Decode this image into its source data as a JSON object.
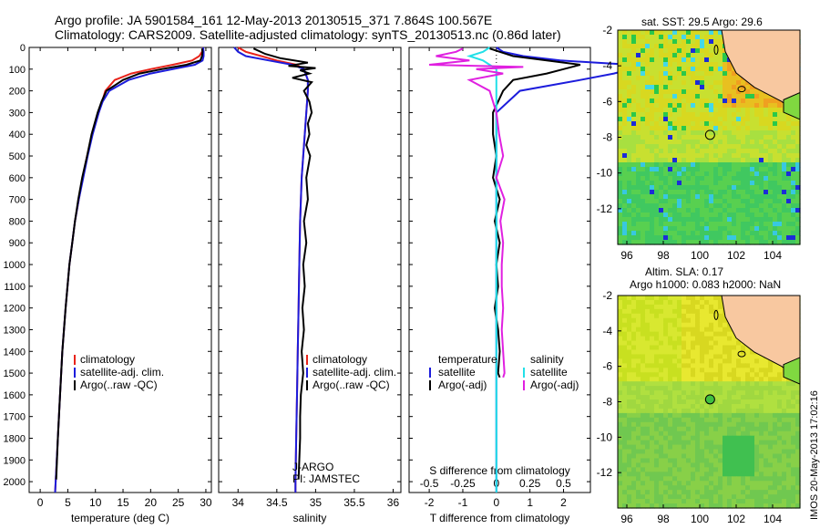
{
  "header": {
    "line1": "Argo profile: JA 5901584_161 12-May-2013 20130515_371 7.864S 100.567E",
    "line2": "Climatology: CARS2009. Satellite-adjusted climatology: synTS_20130513.nc (0.86d later)"
  },
  "footer": "IMOS 20-May-2013 17:02:16",
  "colors": {
    "climatology": "#e8231a",
    "satellite": "#1c1cdc",
    "argo": "#000000",
    "argo_salt_diff": "#e020e0",
    "satellite_salt_diff": "#22e0e8"
  },
  "chart_data": [
    {
      "type": "line",
      "panel": "temperature",
      "xlabel": "temperature (deg C)",
      "ylabel": "",
      "xlim": [
        -2,
        31
      ],
      "xticks": [
        0,
        5,
        10,
        15,
        20,
        25,
        30
      ],
      "ylim": [
        2050,
        0
      ],
      "yticks": [
        0,
        100,
        200,
        300,
        400,
        500,
        600,
        700,
        800,
        900,
        1000,
        1100,
        1200,
        1300,
        1400,
        1500,
        1600,
        1700,
        1800,
        1900,
        2000
      ],
      "legend": [
        "climatology",
        "satellite-adj. clim.",
        "Argo(..raw -QC)"
      ],
      "series": [
        {
          "name": "climatology",
          "color": "#e8231a",
          "depth": [
            0,
            20,
            40,
            60,
            80,
            100,
            120,
            150,
            200,
            250,
            300,
            400,
            500,
            600,
            700,
            800,
            900,
            1000,
            1200,
            1400,
            1600,
            1800,
            2000,
            2050
          ],
          "values": [
            29.5,
            29.3,
            28.8,
            27.5,
            24,
            20,
            16.5,
            13.5,
            11.8,
            11.2,
            10.6,
            9.4,
            8.5,
            7.7,
            7.0,
            6.3,
            5.8,
            5.3,
            4.6,
            4.0,
            3.6,
            3.2,
            2.8,
            2.7
          ]
        },
        {
          "name": "satellite-adj. clim.",
          "color": "#1c1cdc",
          "depth": [
            0,
            20,
            40,
            60,
            80,
            100,
            120,
            150,
            200,
            250,
            300,
            400,
            500,
            600,
            700,
            800,
            900,
            1000,
            1200,
            1400,
            1600,
            1800,
            2000,
            2050
          ],
          "values": [
            29.5,
            29.6,
            29.6,
            29.4,
            28,
            24,
            20,
            16,
            12.5,
            11.3,
            10.6,
            9.5,
            8.6,
            7.8,
            7.0,
            6.3,
            5.8,
            5.3,
            4.6,
            4.0,
            3.6,
            3.2,
            2.8,
            2.7
          ]
        },
        {
          "name": "Argo(..raw -QC)",
          "color": "#000000",
          "depth": [
            5,
            20,
            40,
            60,
            80,
            100,
            120,
            150,
            200,
            250,
            300,
            400,
            500,
            600,
            700,
            800,
            900,
            1000,
            1200,
            1400,
            1600,
            1800,
            1990
          ],
          "values": [
            29.3,
            29.4,
            29.3,
            29.0,
            26.5,
            22,
            18,
            15,
            12.0,
            11.1,
            10.4,
            9.3,
            8.5,
            7.6,
            6.9,
            6.3,
            5.8,
            5.3,
            4.6,
            4.0,
            3.6,
            3.2,
            2.9
          ]
        }
      ]
    },
    {
      "type": "line",
      "panel": "salinity",
      "xlabel": "salinity",
      "xlim": [
        33.75,
        36.1
      ],
      "xticks": [
        34,
        34.5,
        35,
        35.5,
        36
      ],
      "ylim": [
        2050,
        0
      ],
      "legend": [
        "climatology",
        "satellite-adj. clim.",
        "Argo(..raw -QC)"
      ],
      "annotation": [
        "J-ARGO",
        "PI: JAMSTEC"
      ],
      "series": [
        {
          "name": "climatology",
          "color": "#e8231a",
          "depth": [
            0,
            20,
            40,
            60,
            80,
            100,
            150,
            200,
            300,
            400,
            500,
            600,
            800,
            1000,
            1200,
            1400,
            1600,
            1800,
            2000,
            2050
          ],
          "values": [
            34.0,
            34.1,
            34.3,
            34.5,
            34.75,
            34.85,
            34.9,
            34.9,
            34.88,
            34.86,
            34.84,
            34.82,
            34.8,
            34.79,
            34.78,
            34.77,
            34.76,
            34.75,
            34.74,
            34.74
          ]
        },
        {
          "name": "satellite-adj. clim.",
          "color": "#1c1cdc",
          "depth": [
            0,
            20,
            40,
            60,
            80,
            100,
            150,
            200,
            300,
            400,
            500,
            600,
            800,
            1000,
            1200,
            1400,
            1600,
            1800,
            2000,
            2050
          ],
          "values": [
            33.95,
            34.0,
            34.1,
            34.4,
            34.7,
            34.85,
            34.9,
            34.9,
            34.88,
            34.86,
            34.84,
            34.82,
            34.8,
            34.79,
            34.78,
            34.77,
            34.76,
            34.75,
            34.74,
            34.74
          ]
        },
        {
          "name": "Argo(..raw -QC)",
          "color": "#000000",
          "depth": [
            5,
            30,
            50,
            70,
            85,
            95,
            105,
            120,
            140,
            160,
            200,
            250,
            300,
            350,
            400,
            450,
            500,
            600,
            700,
            800,
            900,
            1000,
            1100,
            1200,
            1300,
            1400,
            1500,
            1600,
            1700,
            1800,
            1900,
            1990
          ],
          "values": [
            34.2,
            34.35,
            34.55,
            34.9,
            34.65,
            35.0,
            34.8,
            34.92,
            34.7,
            34.95,
            34.85,
            34.92,
            34.95,
            34.9,
            34.92,
            34.88,
            34.93,
            34.88,
            34.9,
            34.85,
            34.88,
            34.84,
            34.86,
            34.83,
            34.85,
            34.82,
            34.84,
            34.81,
            34.8,
            34.8,
            34.79,
            34.78
          ]
        }
      ]
    },
    {
      "type": "line",
      "panel": "difference",
      "xlabel": "T difference from climatology",
      "xlabel2": "S difference from climatology",
      "xlim": [
        -2.6,
        2.8
      ],
      "xticks": [
        -2,
        -1,
        0,
        1,
        2
      ],
      "xticks2": [
        -0.5,
        -0.25,
        0,
        0.25,
        0.5
      ],
      "ylim": [
        2050,
        0
      ],
      "legend_temperature": [
        "temperature",
        "satellite",
        "Argo(-adj)"
      ],
      "legend_salinity": [
        "salinity",
        "satellite",
        "Argo(-adj)"
      ],
      "series": [
        {
          "name": "satellite",
          "quantity": "T",
          "color": "#1c1cdc",
          "depth": [
            0,
            20,
            40,
            60,
            80,
            100,
            120,
            150,
            200,
            300,
            500,
            1000,
            2050
          ],
          "values": [
            0,
            0.2,
            0.8,
            1.9,
            4.0,
            4.0,
            3.5,
            2.5,
            0.7,
            0,
            0,
            0,
            0
          ]
        },
        {
          "name": "Argo(-adj)",
          "quantity": "T",
          "color": "#000000",
          "depth": [
            5,
            20,
            40,
            60,
            80,
            100,
            120,
            150,
            200,
            300,
            400,
            500,
            600,
            700,
            800,
            900,
            1000,
            1100,
            1200,
            1300,
            1400,
            1500,
            1520
          ],
          "values": [
            -0.2,
            0.1,
            0.5,
            1.5,
            2.5,
            2.0,
            1.5,
            0.5,
            0.2,
            -0.1,
            -0.1,
            0,
            -0.1,
            0.1,
            -0.05,
            0.1,
            0,
            0.05,
            -0.05,
            0.05,
            0.1,
            0.05,
            0.1
          ]
        },
        {
          "name": "satellite",
          "quantity": "S",
          "color": "#22e0e8",
          "depth": [
            0,
            20,
            40,
            60,
            80,
            100,
            150,
            200,
            300,
            500,
            1000,
            2050
          ],
          "values": [
            -0.05,
            -0.1,
            -0.2,
            -0.1,
            -0.05,
            0,
            0,
            0,
            0,
            0,
            0,
            0
          ]
        },
        {
          "name": "Argo(-adj)",
          "quantity": "S",
          "color": "#e020e0",
          "depth": [
            5,
            20,
            40,
            60,
            80,
            90,
            100,
            120,
            150,
            200,
            300,
            400,
            500,
            600,
            700,
            800,
            900,
            1000,
            1100,
            1200,
            1300,
            1400,
            1500,
            1520
          ],
          "values": [
            -0.25,
            -0.3,
            -0.45,
            -0.2,
            -0.5,
            0.2,
            -0.15,
            0.05,
            -0.2,
            -0.05,
            0,
            0.02,
            0.05,
            0.0,
            0.06,
            0.03,
            0.05,
            0.04,
            0.04,
            0.05,
            0.04,
            0.05,
            0.06,
            0.05
          ]
        }
      ]
    },
    {
      "type": "heatmap",
      "panel": "sst-map",
      "title": "sat. SST: 29.5 Argo: 29.6",
      "xlim": [
        95.5,
        105.5
      ],
      "ylim": [
        -14,
        -2
      ],
      "xticks": [
        96,
        98,
        100,
        102,
        104
      ],
      "yticks": [
        -2,
        -4,
        -6,
        -8,
        -10,
        -12
      ],
      "argo_position": [
        100.567,
        -7.864
      ]
    },
    {
      "type": "heatmap",
      "panel": "sla-map",
      "title": "Altim. SLA: 0.17",
      "subtitle": "Argo h1000: 0.083 h2000: NaN",
      "xlim": [
        95.5,
        105.5
      ],
      "ylim": [
        -14,
        -2
      ],
      "xticks": [
        96,
        98,
        100,
        102,
        104
      ],
      "yticks": [
        -2,
        -4,
        -6,
        -8,
        -10,
        -12
      ],
      "argo_position": [
        100.567,
        -7.864
      ]
    }
  ]
}
